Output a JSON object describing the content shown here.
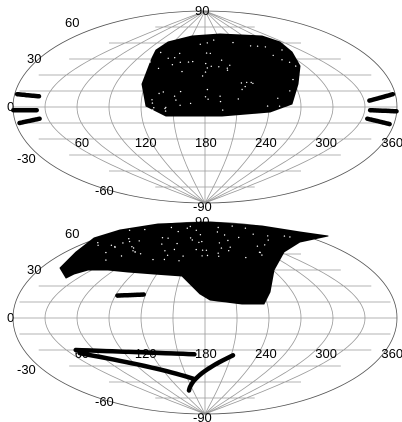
{
  "chart_data": [
    {
      "type": "scatter",
      "projection": "Aitoff",
      "coordinate_grid": {
        "longitude_ticks": [
          "60",
          "120",
          "180",
          "240",
          "300",
          "360"
        ],
        "latitude_ticks": [
          "90",
          "60",
          "30",
          "0",
          "-30",
          "-60",
          "-90"
        ],
        "longitude_range": [
          0,
          360
        ],
        "latitude_range": [
          -90,
          90
        ],
        "grid": true
      },
      "point_color": "#000000",
      "coverage": [
        {
          "kind": "region",
          "lon": [
            118,
            250
          ],
          "lat": [
            2,
            78
          ]
        },
        {
          "kind": "strip",
          "lon": [
            222,
            252
          ],
          "lat": [
            44,
            58
          ]
        },
        {
          "kind": "strip",
          "lon": [
            0,
            22
          ],
          "lat": [
            12,
            10
          ]
        },
        {
          "kind": "strip",
          "lon": [
            0,
            22
          ],
          "lat": [
            -3,
            -3
          ]
        },
        {
          "kind": "strip",
          "lon": [
            0,
            22
          ],
          "lat": [
            -15,
            -11
          ]
        },
        {
          "kind": "strip",
          "lon": [
            335,
            360
          ],
          "lat": [
            6,
            12
          ]
        },
        {
          "kind": "strip",
          "lon": [
            335,
            360
          ],
          "lat": [
            -3,
            -4
          ]
        },
        {
          "kind": "strip",
          "lon": [
            335,
            360
          ],
          "lat": [
            -11,
            -16
          ]
        }
      ]
    },
    {
      "type": "scatter",
      "projection": "Aitoff",
      "coordinate_grid": {
        "longitude_ticks": [
          "60",
          "120",
          "180",
          "240",
          "300",
          "360"
        ],
        "latitude_ticks": [
          "90",
          "60",
          "30",
          "0",
          "-30",
          "-60",
          "-90"
        ],
        "longitude_range": [
          0,
          360
        ],
        "latitude_range": [
          -90,
          90
        ],
        "grid": true
      },
      "point_color": "#000000",
      "coverage": [
        {
          "kind": "region",
          "lon": [
            25,
            280
          ],
          "lat": [
            10,
            88
          ]
        },
        {
          "kind": "strip",
          "lon": [
            92,
            118
          ],
          "lat": [
            21,
            22
          ]
        },
        {
          "kind": "strip",
          "lon": [
            40,
            168
          ],
          "lat": [
            -30,
            -34
          ]
        },
        {
          "kind": "strip",
          "lon": [
            40,
            160
          ],
          "lat": [
            -33,
            -57
          ]
        },
        {
          "kind": "strip",
          "lon": [
            140,
            212
          ],
          "lat": [
            -68,
            -35
          ]
        }
      ]
    }
  ]
}
